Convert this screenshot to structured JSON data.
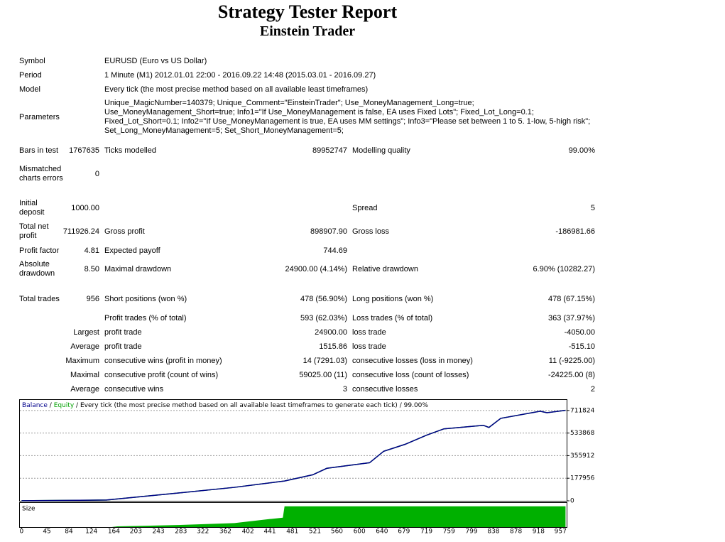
{
  "header": {
    "title": "Strategy Tester Report",
    "subtitle": "Einstein Trader"
  },
  "table": {
    "rows": [
      [
        "Symbol",
        "EURUSD (Euro vs US Dollar)"
      ],
      [
        "Period",
        "1 Minute (M1) 2012.01.01 22:00 - 2016.09.22 14:48 (2015.03.01 - 2016.09.27)"
      ],
      [
        "Model",
        "Every tick (the most precise method based on all available least timeframes)"
      ],
      [
        "Parameters",
        "Unique_MagicNumber=140379; Unique_Comment=\"EinsteinTrader\"; Use_MoneyManagement_Long=true; Use_MoneyManagement_Short=true; Info1=\"If Use_MoneyManagement is false, EA uses Fixed Lots\"; Fixed_Lot_Long=0.1; Fixed_Lot_Short=0.1; Info2=\"If Use_MoneyManagement is true, EA uses MM settings\"; Info3=\"Please set between 1 to 5. 1-low, 5-high risk\"; Set_Long_MoneyManagement=5; Set_Short_MoneyManagement=5;"
      ],
      [
        "Bars in test",
        "1767635",
        "Ticks modelled",
        "89952747",
        "Modelling quality",
        "99.00%"
      ],
      [
        "Mismatched charts errors",
        "0",
        null,
        null,
        null,
        null
      ],
      [
        "Initial deposit",
        "1000.00",
        null,
        null,
        "Spread",
        "5"
      ],
      [
        "Total net profit",
        "711926.24",
        "Gross profit",
        "898907.90",
        "Gross loss",
        "-186981.66"
      ],
      [
        "Profit factor",
        "4.81",
        "Expected payoff",
        "744.69",
        null,
        null
      ],
      [
        "Absolute drawdown",
        "8.50",
        "Maximal drawdown",
        "24900.00 (4.14%)",
        "Relative drawdown",
        "6.90% (10282.27)"
      ],
      [
        "Total trades",
        "956",
        "Short positions (won %)",
        "478 (56.90%)",
        "Long positions (won %)",
        "478 (67.15%)"
      ],
      [
        null,
        null,
        "Profit trades (% of total)",
        "593 (62.03%)",
        "Loss trades (% of total)",
        "363 (37.97%)"
      ],
      [
        null,
        "Largest",
        "profit trade",
        "24900.00",
        "loss trade",
        "-4050.00"
      ],
      [
        null,
        "Average",
        "profit trade",
        "1515.86",
        "loss trade",
        "-515.10"
      ],
      [
        null,
        "Maximum",
        "consecutive wins (profit in money)",
        "14 (7291.03)",
        "consecutive losses (loss in money)",
        "11 (-9225.00)"
      ],
      [
        null,
        "Maximal",
        "consecutive profit (count of wins)",
        "59025.00 (11)",
        "consecutive loss (count of losses)",
        "-24225.00 (8)"
      ],
      [
        null,
        "Average",
        "consecutive wins",
        "3",
        "consecutive losses",
        "2"
      ]
    ]
  },
  "chart_data": [
    {
      "type": "line",
      "legend_separator": "/",
      "legend_note": "Every tick (the most precise method based on all available least timeframes to generate each tick)",
      "legend_quality": "99.00%",
      "x": [
        0,
        151,
        277,
        378,
        467,
        517,
        542,
        618,
        643,
        681,
        719,
        750,
        820,
        830,
        851,
        921,
        933,
        966
      ],
      "series": [
        {
          "name": "Balance",
          "color": "#00008b",
          "values": [
            1000,
            6000,
            61000,
            106000,
            156000,
            205000,
            256000,
            300000,
            390000,
            445000,
            517000,
            567000,
            595000,
            578000,
            650000,
            706000,
            694000,
            712926
          ]
        },
        {
          "name": "Equity",
          "color": "#00a000",
          "values": [
            1000,
            6000,
            61000,
            106000,
            156000,
            205000,
            256000,
            300000,
            390000,
            445000,
            517000,
            567000,
            595000,
            578000,
            650000,
            706000,
            694000,
            712926
          ]
        }
      ],
      "xlim": [
        -3,
        968
      ],
      "ylim": [
        0,
        795000
      ],
      "yticks": [
        0,
        177956,
        355912,
        533868,
        711824
      ],
      "grid": true
    },
    {
      "type": "area",
      "title": "Size",
      "color": "#00b000",
      "x": [
        0,
        160,
        170,
        277,
        378,
        441,
        464,
        467,
        966
      ],
      "values": [
        0,
        0,
        0.05,
        0.15,
        0.3,
        0.6,
        0.7,
        1.55,
        1.55
      ],
      "xlim": [
        -3,
        968
      ],
      "ylim": [
        0,
        1.8
      ],
      "xticks": [
        0,
        45,
        84,
        124,
        164,
        203,
        243,
        283,
        322,
        362,
        402,
        441,
        481,
        521,
        560,
        600,
        640,
        679,
        719,
        759,
        799,
        838,
        878,
        918,
        957
      ]
    }
  ]
}
